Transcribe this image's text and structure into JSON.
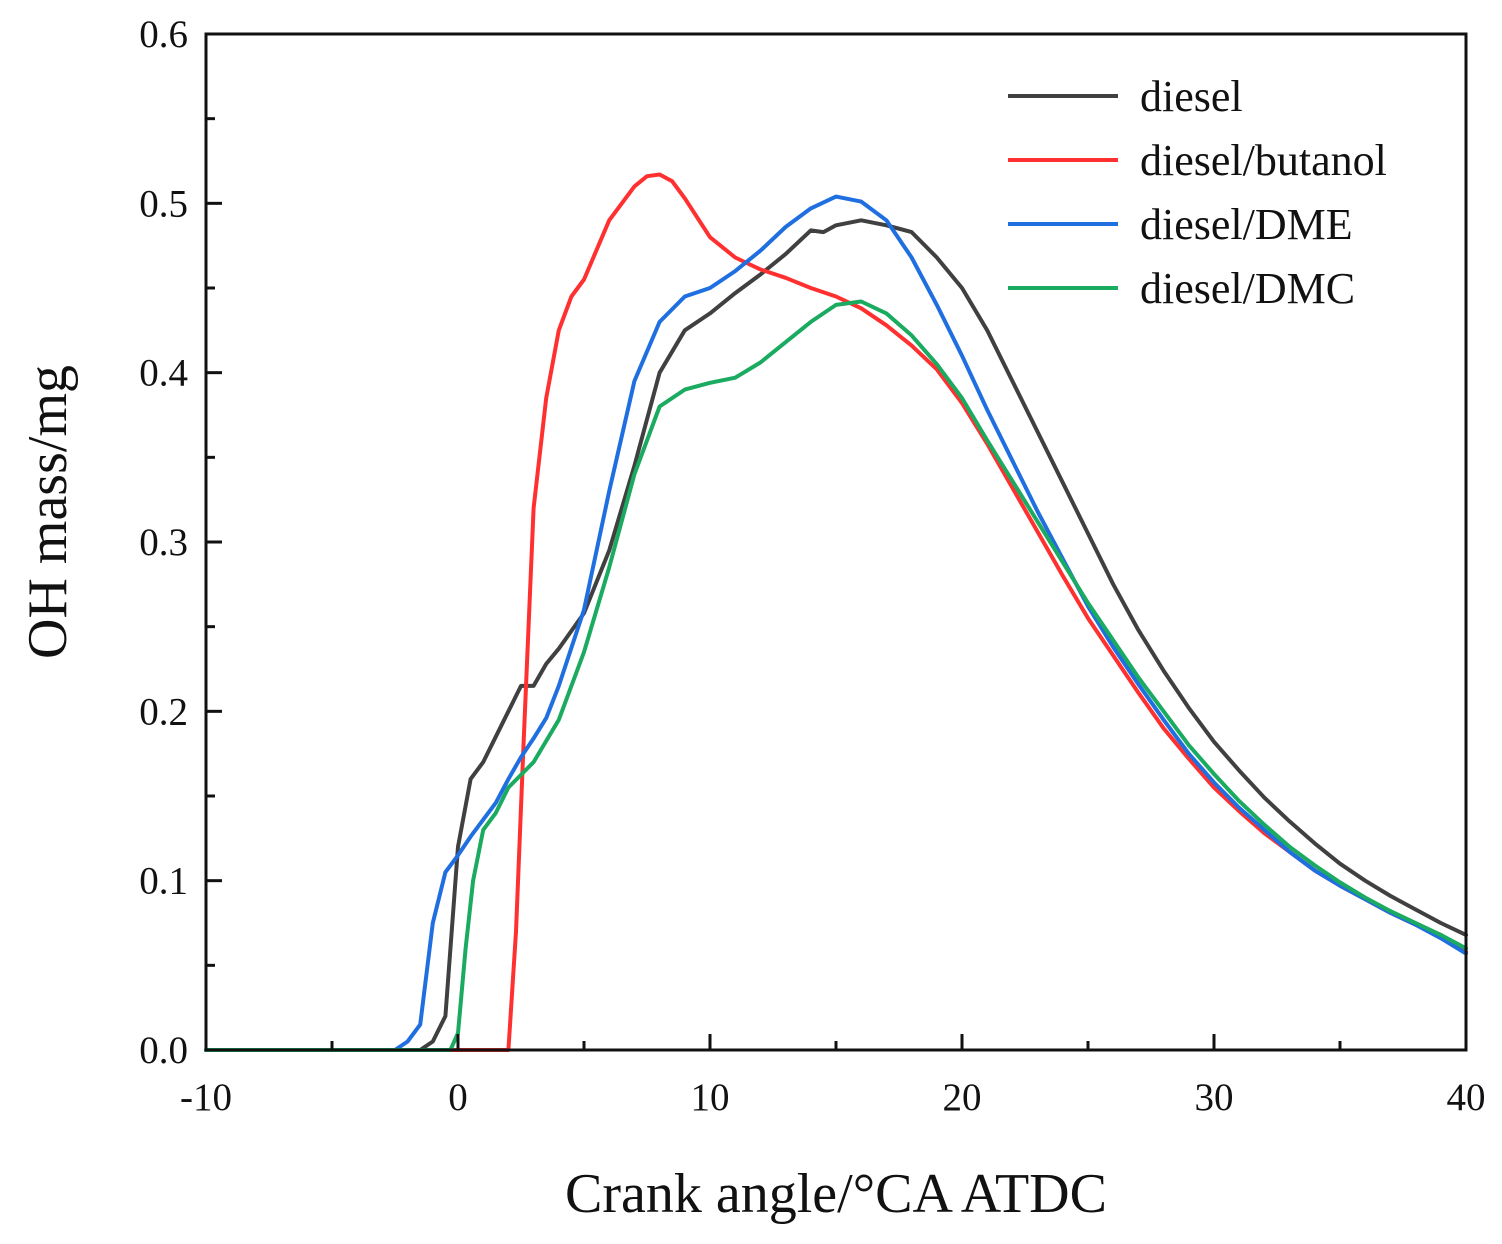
{
  "chart_data": {
    "type": "line",
    "title": "",
    "xlabel": "Crank angle/°CA ATDC",
    "ylabel": "OH mass/mg",
    "xlim": [
      -10,
      40
    ],
    "ylim": [
      0,
      0.6
    ],
    "xticks": [
      -10,
      0,
      10,
      20,
      30,
      40
    ],
    "xtick_labels": [
      "-10",
      "0",
      "10",
      "20",
      "30",
      "40"
    ],
    "yticks": [
      0,
      0.1,
      0.2,
      0.3,
      0.4,
      0.5,
      0.6
    ],
    "ytick_labels": [
      "0.0",
      "0.1",
      "0.2",
      "0.3",
      "0.4",
      "0.5",
      "0.6"
    ],
    "grid": false,
    "legend_position": "top-right",
    "series": [
      {
        "name": "diesel",
        "color": "#404040",
        "points": [
          [
            -10,
            0
          ],
          [
            -1.5,
            0
          ],
          [
            -1,
            0.005
          ],
          [
            -0.5,
            0.02
          ],
          [
            0,
            0.12
          ],
          [
            0.5,
            0.16
          ],
          [
            1,
            0.17
          ],
          [
            1.5,
            0.185
          ],
          [
            2,
            0.2
          ],
          [
            2.5,
            0.215
          ],
          [
            3,
            0.215
          ],
          [
            3.5,
            0.228
          ],
          [
            4,
            0.237
          ],
          [
            5,
            0.258
          ],
          [
            6,
            0.295
          ],
          [
            7,
            0.345
          ],
          [
            8,
            0.4
          ],
          [
            9,
            0.425
          ],
          [
            10,
            0.435
          ],
          [
            11,
            0.447
          ],
          [
            12,
            0.458
          ],
          [
            13,
            0.47
          ],
          [
            14,
            0.484
          ],
          [
            14.5,
            0.483
          ],
          [
            15,
            0.487
          ],
          [
            16,
            0.49
          ],
          [
            17,
            0.487
          ],
          [
            18,
            0.483
          ],
          [
            19,
            0.468
          ],
          [
            20,
            0.45
          ],
          [
            21,
            0.425
          ],
          [
            22,
            0.395
          ],
          [
            23,
            0.365
          ],
          [
            24,
            0.335
          ],
          [
            25,
            0.305
          ],
          [
            26,
            0.275
          ],
          [
            27,
            0.248
          ],
          [
            28,
            0.224
          ],
          [
            29,
            0.202
          ],
          [
            30,
            0.182
          ],
          [
            31,
            0.165
          ],
          [
            32,
            0.149
          ],
          [
            33,
            0.135
          ],
          [
            34,
            0.122
          ],
          [
            35,
            0.11
          ],
          [
            36,
            0.1
          ],
          [
            37,
            0.091
          ],
          [
            38,
            0.083
          ],
          [
            39,
            0.075
          ],
          [
            40,
            0.068
          ]
        ]
      },
      {
        "name": "diesel/butanol",
        "color": "#ff3030",
        "points": [
          [
            -10,
            0
          ],
          [
            2,
            0
          ],
          [
            2.3,
            0.07
          ],
          [
            2.6,
            0.18
          ],
          [
            3,
            0.32
          ],
          [
            3.5,
            0.385
          ],
          [
            4,
            0.425
          ],
          [
            4.5,
            0.445
          ],
          [
            5,
            0.455
          ],
          [
            6,
            0.49
          ],
          [
            7,
            0.51
          ],
          [
            7.5,
            0.516
          ],
          [
            8,
            0.517
          ],
          [
            8.5,
            0.513
          ],
          [
            9,
            0.503
          ],
          [
            10,
            0.48
          ],
          [
            11,
            0.468
          ],
          [
            12,
            0.461
          ],
          [
            13,
            0.456
          ],
          [
            14,
            0.45
          ],
          [
            15,
            0.445
          ],
          [
            16,
            0.438
          ],
          [
            17,
            0.428
          ],
          [
            18,
            0.416
          ],
          [
            19,
            0.402
          ],
          [
            20,
            0.382
          ],
          [
            21,
            0.358
          ],
          [
            22,
            0.332
          ],
          [
            23,
            0.306
          ],
          [
            24,
            0.28
          ],
          [
            25,
            0.255
          ],
          [
            26,
            0.233
          ],
          [
            27,
            0.211
          ],
          [
            28,
            0.19
          ],
          [
            29,
            0.172
          ],
          [
            30,
            0.155
          ],
          [
            31,
            0.141
          ],
          [
            32,
            0.128
          ],
          [
            33,
            0.117
          ],
          [
            34,
            0.106
          ],
          [
            35,
            0.097
          ],
          [
            36,
            0.089
          ],
          [
            37,
            0.081
          ],
          [
            38,
            0.074
          ],
          [
            39,
            0.068
          ],
          [
            40,
            0.058
          ]
        ]
      },
      {
        "name": "diesel/DME",
        "color": "#1f6fe0",
        "points": [
          [
            -10,
            0
          ],
          [
            -2.5,
            0
          ],
          [
            -2,
            0.005
          ],
          [
            -1.5,
            0.015
          ],
          [
            -1,
            0.075
          ],
          [
            -0.5,
            0.105
          ],
          [
            0,
            0.115
          ],
          [
            0.5,
            0.126
          ],
          [
            1,
            0.136
          ],
          [
            1.5,
            0.146
          ],
          [
            2,
            0.16
          ],
          [
            2.5,
            0.173
          ],
          [
            3,
            0.184
          ],
          [
            3.5,
            0.196
          ],
          [
            4,
            0.215
          ],
          [
            5,
            0.26
          ],
          [
            6,
            0.33
          ],
          [
            7,
            0.395
          ],
          [
            8,
            0.43
          ],
          [
            9,
            0.445
          ],
          [
            10,
            0.45
          ],
          [
            11,
            0.46
          ],
          [
            12,
            0.472
          ],
          [
            13,
            0.486
          ],
          [
            14,
            0.497
          ],
          [
            15,
            0.504
          ],
          [
            16,
            0.501
          ],
          [
            17,
            0.49
          ],
          [
            18,
            0.468
          ],
          [
            19,
            0.44
          ],
          [
            20,
            0.41
          ],
          [
            21,
            0.378
          ],
          [
            22,
            0.348
          ],
          [
            23,
            0.318
          ],
          [
            24,
            0.29
          ],
          [
            25,
            0.262
          ],
          [
            26,
            0.238
          ],
          [
            27,
            0.216
          ],
          [
            28,
            0.195
          ],
          [
            29,
            0.175
          ],
          [
            30,
            0.158
          ],
          [
            31,
            0.143
          ],
          [
            32,
            0.13
          ],
          [
            33,
            0.117
          ],
          [
            34,
            0.106
          ],
          [
            35,
            0.097
          ],
          [
            36,
            0.089
          ],
          [
            37,
            0.081
          ],
          [
            38,
            0.074
          ],
          [
            39,
            0.066
          ],
          [
            40,
            0.057
          ]
        ]
      },
      {
        "name": "diesel/DMC",
        "color": "#1aaa60",
        "points": [
          [
            -10,
            0
          ],
          [
            -0.3,
            0
          ],
          [
            0,
            0.01
          ],
          [
            0.3,
            0.06
          ],
          [
            0.6,
            0.1
          ],
          [
            1,
            0.13
          ],
          [
            1.5,
            0.14
          ],
          [
            2,
            0.155
          ],
          [
            3,
            0.17
          ],
          [
            4,
            0.195
          ],
          [
            5,
            0.235
          ],
          [
            6,
            0.285
          ],
          [
            7,
            0.34
          ],
          [
            8,
            0.38
          ],
          [
            9,
            0.39
          ],
          [
            10,
            0.394
          ],
          [
            11,
            0.397
          ],
          [
            12,
            0.406
          ],
          [
            13,
            0.418
          ],
          [
            14,
            0.43
          ],
          [
            15,
            0.44
          ],
          [
            16,
            0.442
          ],
          [
            17,
            0.435
          ],
          [
            18,
            0.422
          ],
          [
            19,
            0.405
          ],
          [
            20,
            0.385
          ],
          [
            21,
            0.36
          ],
          [
            22,
            0.336
          ],
          [
            23,
            0.312
          ],
          [
            24,
            0.288
          ],
          [
            25,
            0.264
          ],
          [
            26,
            0.242
          ],
          [
            27,
            0.22
          ],
          [
            28,
            0.2
          ],
          [
            29,
            0.18
          ],
          [
            30,
            0.163
          ],
          [
            31,
            0.147
          ],
          [
            32,
            0.133
          ],
          [
            33,
            0.12
          ],
          [
            34,
            0.109
          ],
          [
            35,
            0.099
          ],
          [
            36,
            0.09
          ],
          [
            37,
            0.082
          ],
          [
            38,
            0.075
          ],
          [
            39,
            0.068
          ],
          [
            40,
            0.06
          ]
        ]
      }
    ]
  }
}
